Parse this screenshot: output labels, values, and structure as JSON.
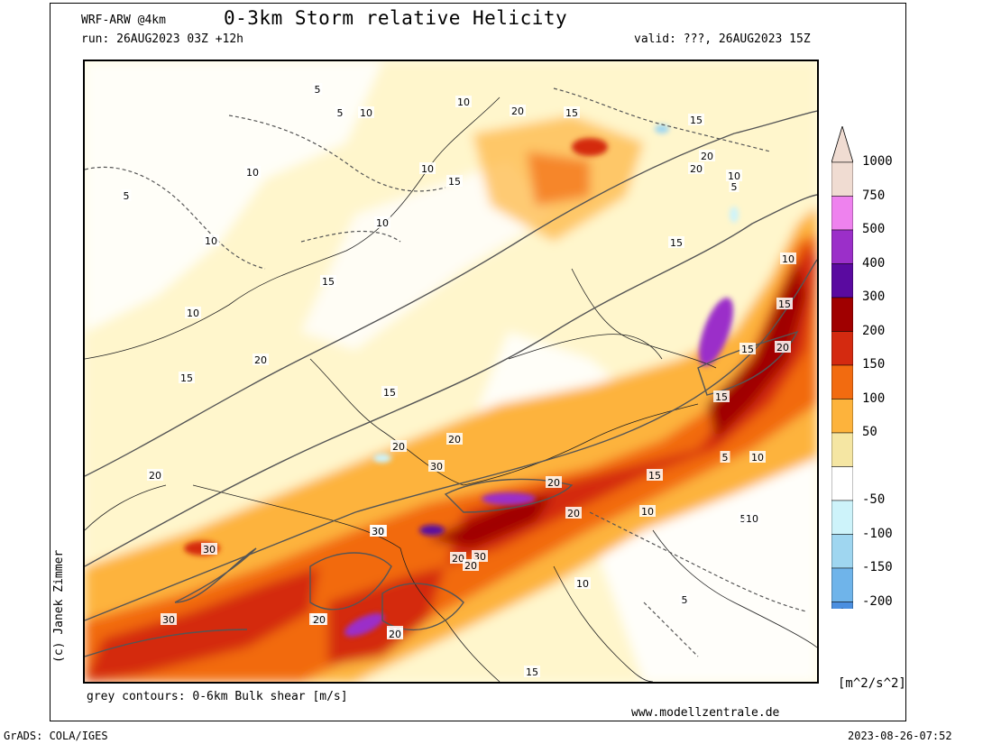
{
  "header": {
    "model": "WRF-ARW @4km",
    "title": "0-3km Storm relative Helicity",
    "run": "run: 26AUG2023 03Z +12h",
    "valid": "valid: ???, 26AUG2023 15Z"
  },
  "footer": {
    "contour_note": "grey contours: 0-6km Bulk shear [m/s]",
    "website": "www.modellzentrale.de",
    "grads": "GrADS: COLA/IGES",
    "timestamp": "2023-08-26-07:52",
    "copyright": "(c) Janek Zimmer",
    "units": "[m^2/s^2]"
  },
  "colorbar": {
    "levels": [
      "1000",
      "750",
      "500",
      "400",
      "300",
      "200",
      "150",
      "100",
      "50",
      "-50",
      "-100",
      "-150",
      "-200"
    ],
    "colors": {
      "1000": "#f0dcd2",
      "750": "#ee82ee",
      "500": "#9b2fc9",
      "400": "#5a0aa0",
      "300": "#a00000",
      "200": "#d42a10",
      "150": "#f26b10",
      "100": "#fdb33c",
      "50": "#f5e6a3",
      "0": "#ffffff",
      "-50": "#cdf3fa",
      "-100": "#9fd6f0",
      "-150": "#6fb4ea",
      "-200": "#4b8fe0"
    }
  },
  "contour_labels": [
    "5",
    "10",
    "10",
    "10",
    "5",
    "10",
    "10",
    "15",
    "20",
    "15",
    "20",
    "15",
    "5",
    "15",
    "10",
    "10",
    "15",
    "20",
    "5",
    "20",
    "10",
    "15",
    "10",
    "15",
    "15",
    "20",
    "15",
    "20",
    "15",
    "20",
    "20",
    "30",
    "30",
    "30",
    "30",
    "15",
    "20",
    "30",
    "20",
    "20",
    "20",
    "30",
    "20",
    "30",
    "20",
    "20",
    "10",
    "10",
    "5",
    "10",
    "5",
    "10",
    "5",
    "15"
  ]
}
